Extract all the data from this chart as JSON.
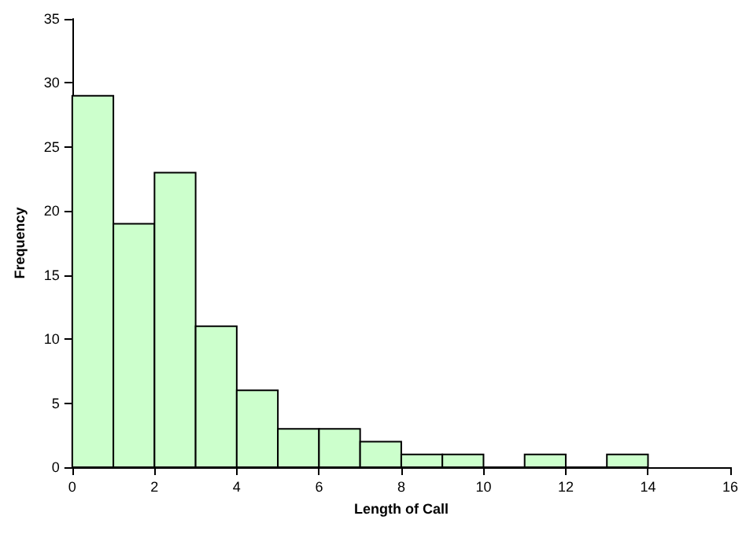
{
  "chart_data": {
    "type": "histogram",
    "xlabel": "Length of Call",
    "ylabel": "Frequency",
    "bins": [
      0,
      1,
      2,
      3,
      4,
      5,
      6,
      7,
      8,
      9,
      10,
      11,
      12,
      13,
      14
    ],
    "values": [
      29,
      19,
      23,
      11,
      6,
      3,
      3,
      2,
      1,
      1,
      0,
      1,
      0,
      1
    ],
    "color": "#ccffcc",
    "xlim": [
      0,
      16
    ],
    "xticks": [
      0,
      2,
      4,
      6,
      8,
      10,
      12,
      14,
      16
    ],
    "ylim": [
      0,
      35
    ],
    "yticks": [
      0,
      5,
      10,
      15,
      20,
      25,
      30,
      35
    ],
    "grid": false
  }
}
